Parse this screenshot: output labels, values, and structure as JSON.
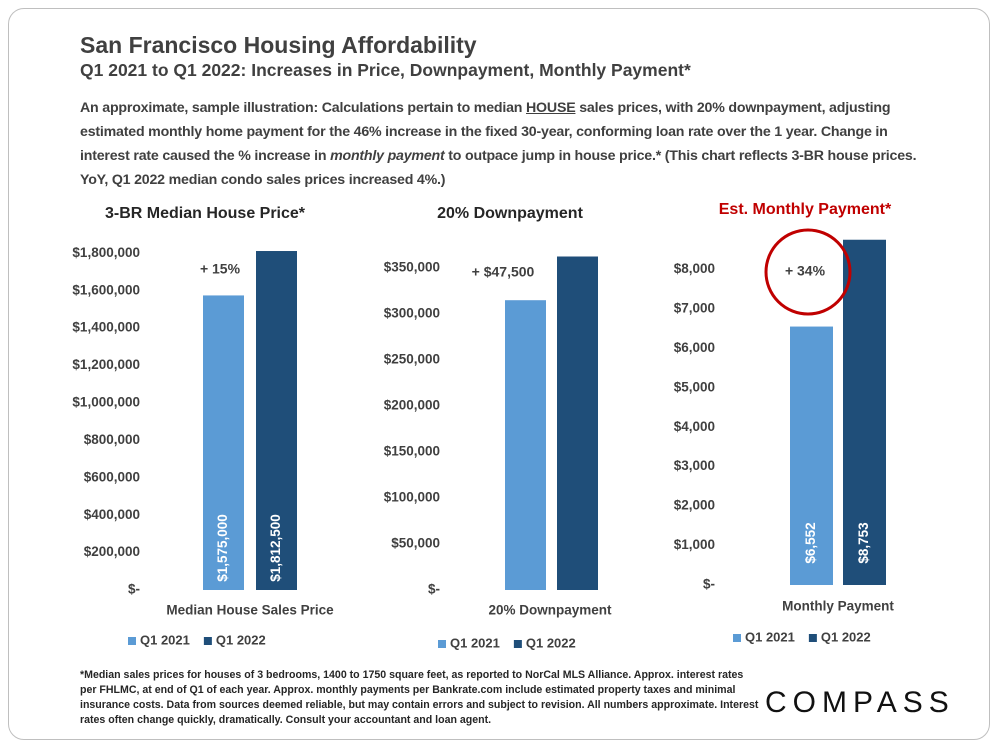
{
  "title": "San Francisco Housing Affordability",
  "subtitle": "Q1 2021 to Q1 2022: Increases in Price, Downpayment, Monthly Payment*",
  "description": [
    "An approximate, sample illustration: Calculations pertain to median ",
    "HOUSE",
    " sales prices, with 20% downpayment, adjusting estimated monthly home payment for the 46% increase in the fixed 30-year, conforming loan rate over the 1 year. Change in interest rate caused the % increase in ",
    "monthly payment",
    " to outpace jump in house price.* (This chart reflects 3-BR house prices. YoY, Q1 2022 median condo sales prices increased 4%.)"
  ],
  "chart_data": [
    {
      "type": "bar",
      "title": "3-BR Median House Price*",
      "title_color": "#262626",
      "categories": [
        "Median House Sales Price"
      ],
      "series": [
        {
          "name": "Q1 2021",
          "color": "#5b9bd5",
          "values": [
            1575000
          ],
          "value_labels": [
            "$1,575,000"
          ]
        },
        {
          "name": "Q1 2022",
          "color": "#1f4e79",
          "values": [
            1812500
          ],
          "value_labels": [
            "$1,812,500"
          ]
        }
      ],
      "ylim": [
        0,
        1850000
      ],
      "yticks": [
        {
          "value": 0,
          "label": "$-"
        },
        {
          "value": 200000,
          "label": "$200,000"
        },
        {
          "value": 400000,
          "label": "$400,000"
        },
        {
          "value": 600000,
          "label": "$600,000"
        },
        {
          "value": 800000,
          "label": "$800,000"
        },
        {
          "value": 1000000,
          "label": "$1,000,000"
        },
        {
          "value": 1200000,
          "label": "$1,200,000"
        },
        {
          "value": 1400000,
          "label": "$1,400,000"
        },
        {
          "value": 1600000,
          "label": "$1,600,000"
        },
        {
          "value": 1800000,
          "label": "$1,800,000"
        }
      ],
      "annotation": "+ 15%",
      "legend": "bottom"
    },
    {
      "type": "bar",
      "title": "20% Downpayment",
      "title_color": "#262626",
      "categories": [
        "20% Downpayment"
      ],
      "series": [
        {
          "name": "Q1 2021",
          "color": "#5b9bd5",
          "values": [
            315000
          ]
        },
        {
          "name": "Q1 2022",
          "color": "#1f4e79",
          "values": [
            362500
          ]
        }
      ],
      "ylim": [
        0,
        375000
      ],
      "yticks": [
        {
          "value": 0,
          "label": "$-"
        },
        {
          "value": 50000,
          "label": "$50,000"
        },
        {
          "value": 100000,
          "label": "$100,000"
        },
        {
          "value": 150000,
          "label": "$150,000"
        },
        {
          "value": 200000,
          "label": "$200,000"
        },
        {
          "value": 250000,
          "label": "$250,000"
        },
        {
          "value": 300000,
          "label": "$300,000"
        },
        {
          "value": 350000,
          "label": "$350,000"
        }
      ],
      "annotation": "+ $47,500",
      "legend": "bottom"
    },
    {
      "type": "bar",
      "title": "Est. Monthly Payment*",
      "title_color": "#c00000",
      "categories": [
        "Monthly Payment"
      ],
      "series": [
        {
          "name": "Q1 2021",
          "color": "#5b9bd5",
          "values": [
            6552
          ],
          "value_labels": [
            "$6,552"
          ]
        },
        {
          "name": "Q1 2022",
          "color": "#1f4e79",
          "values": [
            8753
          ],
          "value_labels": [
            "$8,753"
          ]
        }
      ],
      "ylim": [
        0,
        9000
      ],
      "yticks": [
        {
          "value": 0,
          "label": "$-"
        },
        {
          "value": 1000,
          "label": "$1,000"
        },
        {
          "value": 2000,
          "label": "$2,000"
        },
        {
          "value": 3000,
          "label": "$3,000"
        },
        {
          "value": 4000,
          "label": "$4,000"
        },
        {
          "value": 5000,
          "label": "$5,000"
        },
        {
          "value": 6000,
          "label": "$6,000"
        },
        {
          "value": 7000,
          "label": "$7,000"
        },
        {
          "value": 8000,
          "label": "$8,000"
        }
      ],
      "annotation": "+ 34%",
      "annotation_circle_color": "#c00000",
      "legend": "bottom"
    }
  ],
  "footnote": "*Median sales prices for houses of 3 bedrooms, 1400 to 1750 square feet, as reported to NorCal MLS Alliance. Approx. interest rates per FHLMC, at end of Q1 of each year. Approx. monthly payments per Bankrate.com include estimated property taxes and minimal insurance costs. Data from sources deemed reliable, but may contain errors and subject to revision. All numbers approximate. Interest rates often change quickly, dramatically. Consult your accountant and loan agent.",
  "logo": "COMPASS"
}
